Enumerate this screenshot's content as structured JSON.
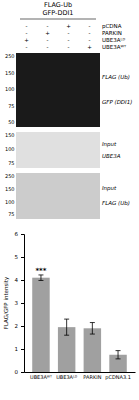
{
  "chart_data": {
    "type": "bar",
    "title": "FLAG-Ub\nGFP-DDI1",
    "conditions": {
      "rows": [
        "pCDNA",
        "PARKIN",
        "UBE3Aᴸᴰ",
        "UBE3Aᵂᵀ"
      ],
      "values": [
        [
          "-",
          "-",
          "+",
          "-"
        ],
        [
          "-",
          "+",
          "-",
          "-"
        ],
        [
          "+",
          "-",
          "-",
          "-"
        ],
        [
          "-",
          "-",
          "-",
          "+"
        ]
      ]
    },
    "panels": [
      {
        "labels": [
          "FLAG (Ub)",
          "GFP (DDI1)"
        ],
        "mw": [
          250,
          150,
          100,
          75,
          50
        ]
      },
      {
        "labels": [
          "Input",
          "UBE3A"
        ],
        "mw": [
          150,
          100,
          75
        ]
      },
      {
        "labels": [
          "Input",
          "FLAG (Ub)"
        ],
        "mw": [
          250,
          150,
          100,
          75
        ]
      }
    ],
    "categories": [
      "UBE3Aᵂᵀ",
      "UBE3Aᴸᴰ",
      "PARKIN",
      "pCDNA3.1"
    ],
    "values": [
      4.1,
      1.95,
      1.9,
      0.75
    ],
    "errors": [
      0.12,
      0.35,
      0.25,
      0.18
    ],
    "color": "#a0a0a0",
    "ylabel": "FLAG/GFP intensity",
    "ylim": [
      0,
      6
    ],
    "yticks": [
      0,
      1,
      2,
      3,
      4,
      5,
      6
    ],
    "annotations": [
      "***"
    ]
  }
}
